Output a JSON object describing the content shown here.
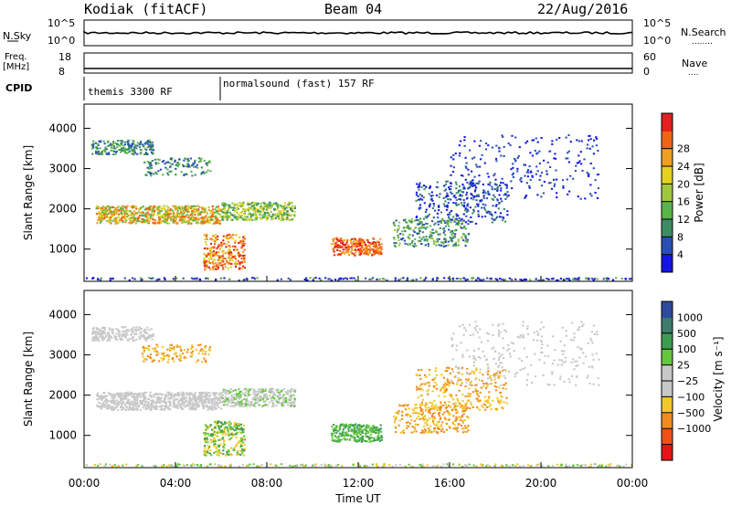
{
  "header": {
    "station": "Kodiak (fitACF)",
    "beam": "Beam 04",
    "date": "22/Aug/2016"
  },
  "side_labels": {
    "nsky": "N.Sky",
    "freq": "Freq.",
    "freq_unit": "[MHz]",
    "cpid": "CPID",
    "nsearch": "N.Search",
    "nave": "Nave",
    "dots": "........",
    "dots_short": "...."
  },
  "noise_panel": {
    "left_ticks": [
      "10^5",
      "10^0"
    ],
    "right_ticks": [
      "10^5",
      "10^0"
    ]
  },
  "freq_panel": {
    "left_ticks": [
      "18",
      "8"
    ],
    "right_ticks": [
      "60",
      "0"
    ]
  },
  "cpid_panel": {
    "segments": [
      {
        "label": "themis 3300 RF",
        "start_hour": 0
      },
      {
        "label": "normalsound (fast) 157 RF",
        "start_hour": 6
      }
    ]
  },
  "chart_data": [
    {
      "type": "heatmap",
      "name": "power",
      "ylabel": "Slant Range [km]",
      "yticks": [
        "1000",
        "2000",
        "3000",
        "4000"
      ],
      "ylim": [
        200,
        4600
      ],
      "colorbar_label": "Power [dB]",
      "colorbar_ticks": [
        "4",
        "8",
        "12",
        "16",
        "20",
        "24",
        "28"
      ],
      "colorbar_colors": [
        "#1414e6",
        "#2850b4",
        "#3c8c64",
        "#5ab446",
        "#a0c83c",
        "#e6d21e",
        "#f0a01e",
        "#f06414",
        "#e61e1e"
      ]
    },
    {
      "type": "heatmap",
      "name": "velocity",
      "ylabel": "Slant Range [km]",
      "yticks": [
        "1000",
        "2000",
        "3000",
        "4000"
      ],
      "ylim": [
        200,
        4600
      ],
      "colorbar_label": "Velocity [m s⁻¹]",
      "colorbar_ticks": [
        "1000",
        "500",
        "100",
        "25",
        "−25",
        "−100",
        "−500",
        "−1000"
      ],
      "colorbar_colors": [
        "#2c4aa0",
        "#3c7c6c",
        "#3c9c50",
        "#64c83c",
        "#c8c8c8",
        "#c8c8c8",
        "#f0c828",
        "#f08c1e",
        "#f05014",
        "#e61414"
      ]
    }
  ],
  "time_axis": {
    "ticks": [
      "00:00",
      "04:00",
      "08:00",
      "12:00",
      "16:00",
      "20:00",
      "00:00"
    ],
    "label": "Time UT"
  }
}
